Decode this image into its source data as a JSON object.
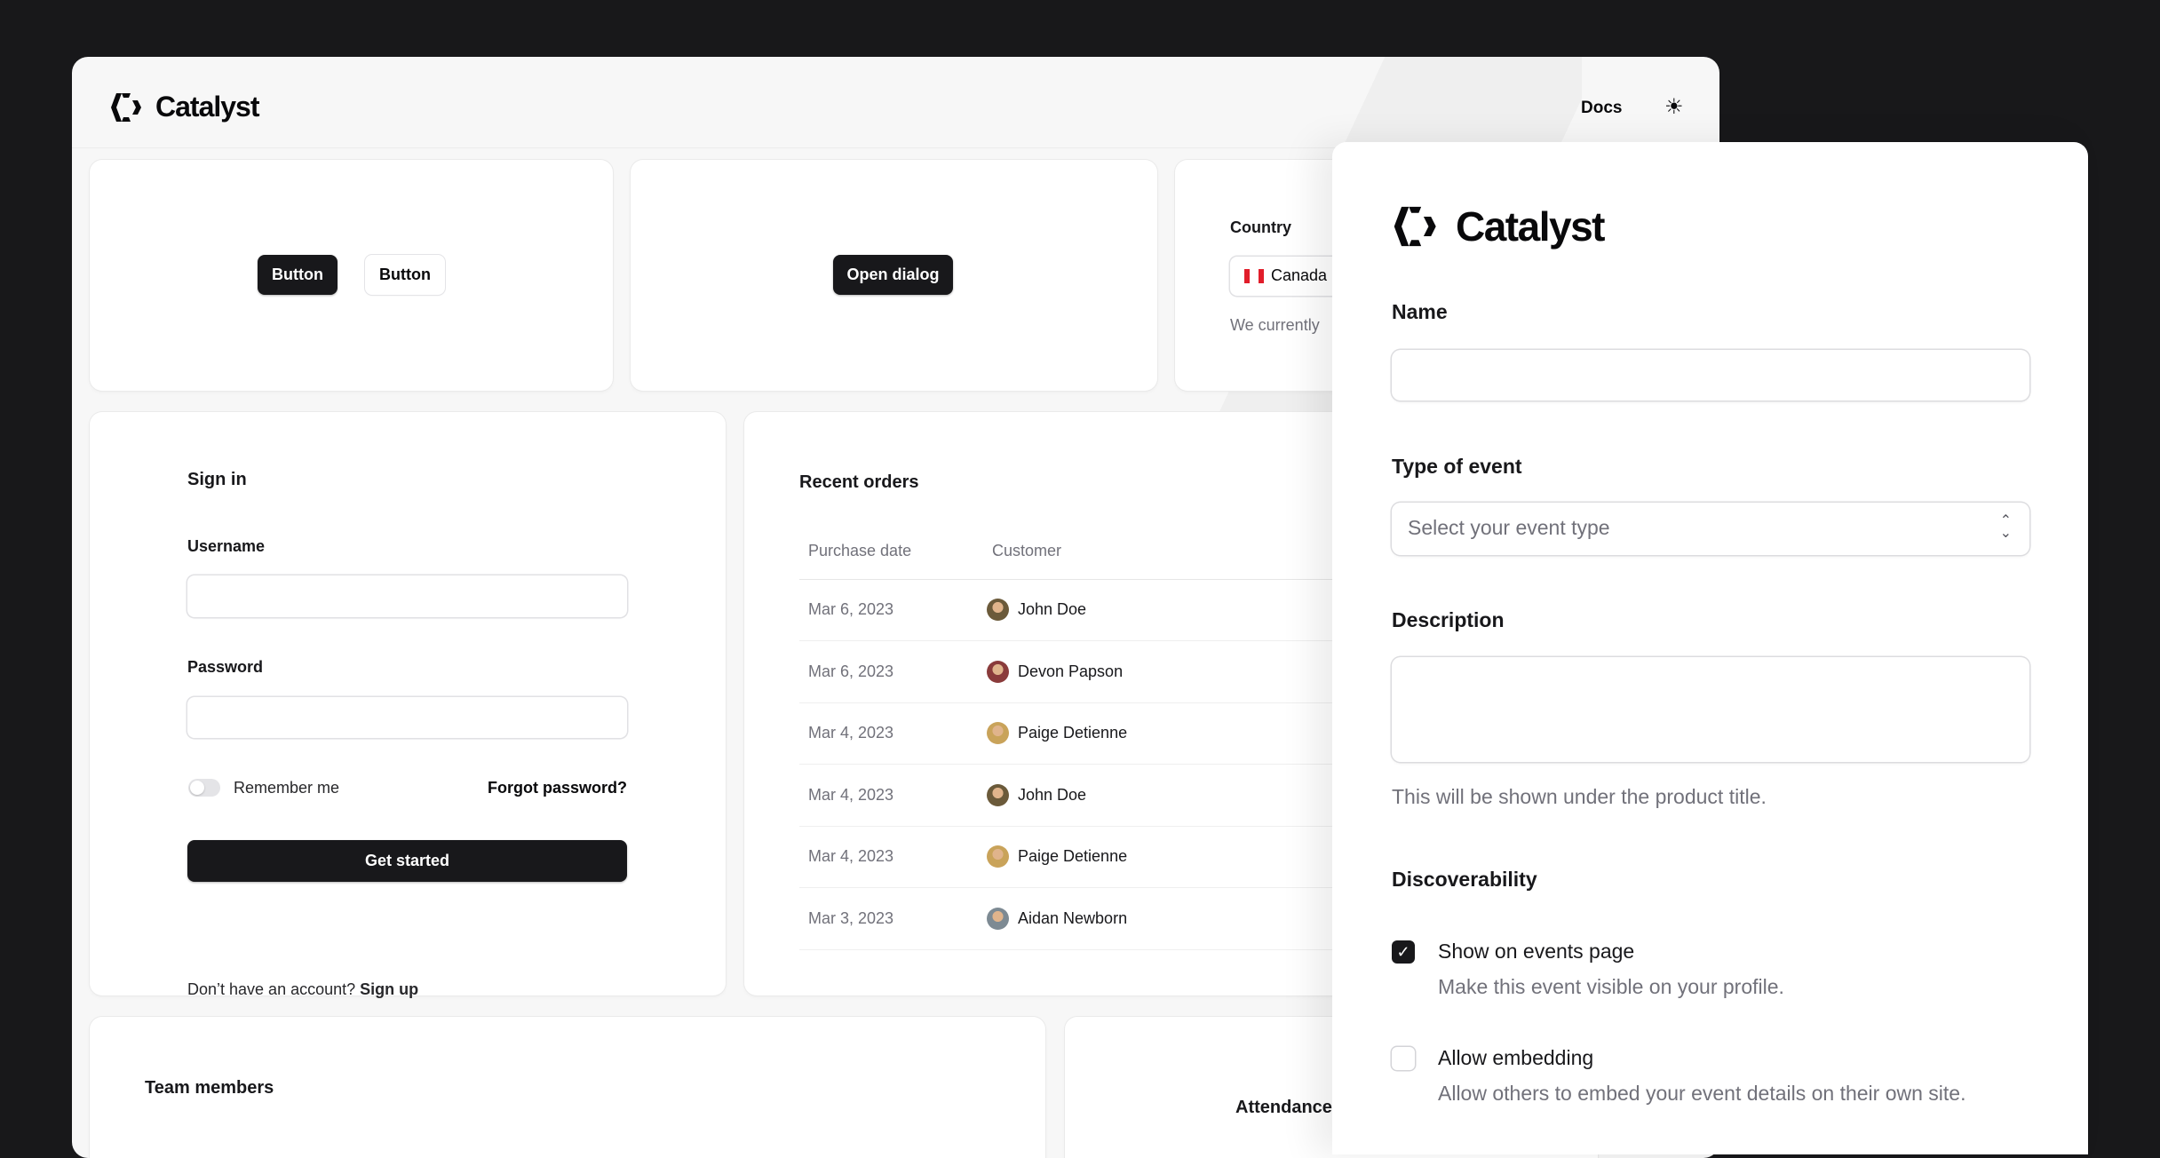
{
  "header": {
    "brand": "Catalyst",
    "docs_link": "Docs",
    "theme_icon": "sun-icon"
  },
  "buttons_card": {
    "primary": "Button",
    "secondary": "Button"
  },
  "dialog_card": {
    "open_dialog": "Open dialog"
  },
  "country_card": {
    "label": "Country",
    "selected": "Canada",
    "flag_icon": "canada-flag-icon",
    "help": "We currently"
  },
  "sign_in": {
    "title": "Sign in",
    "username_label": "Username",
    "username_value": "",
    "password_label": "Password",
    "password_value": "",
    "remember_me": "Remember me",
    "remember_on": false,
    "forgot": "Forgot password?",
    "submit": "Get started",
    "no_account": "Don’t have an account?",
    "sign_up": "Sign up"
  },
  "orders": {
    "title": "Recent orders",
    "columns": [
      "Purchase date",
      "Customer"
    ],
    "rows": [
      {
        "date": "Mar 6, 2023",
        "customer": "John Doe",
        "avatar_color": "#6b5a3a"
      },
      {
        "date": "Mar 6, 2023",
        "customer": "Devon Papson",
        "avatar_color": "#8a3b3b"
      },
      {
        "date": "Mar 4, 2023",
        "customer": "Paige Detienne",
        "avatar_color": "#c9a35a"
      },
      {
        "date": "Mar 4, 2023",
        "customer": "John Doe",
        "avatar_color": "#6b5a3a"
      },
      {
        "date": "Mar 4, 2023",
        "customer": "Paige Detienne",
        "avatar_color": "#c9a35a"
      },
      {
        "date": "Mar 3, 2023",
        "customer": "Aidan Newborn",
        "avatar_color": "#7d8a93"
      }
    ]
  },
  "team": {
    "title": "Team members"
  },
  "attendance": {
    "title": "Attendance"
  },
  "form": {
    "brand": "Catalyst",
    "name_label": "Name",
    "name_value": "",
    "type_label": "Type of event",
    "type_placeholder": "Select your event type",
    "description_label": "Description",
    "description_value": "",
    "description_help": "This will be shown under the product title.",
    "discoverability": "Discoverability",
    "options": [
      {
        "label": "Show on events page",
        "desc": "Make this event visible on your profile.",
        "checked": true
      },
      {
        "label": "Allow embedding",
        "desc": "Allow others to embed your event details on their own site.",
        "checked": false
      }
    ]
  },
  "colors": {
    "background": "#18181a",
    "primary": "#18181b",
    "canada_red": "#e11d2a"
  }
}
